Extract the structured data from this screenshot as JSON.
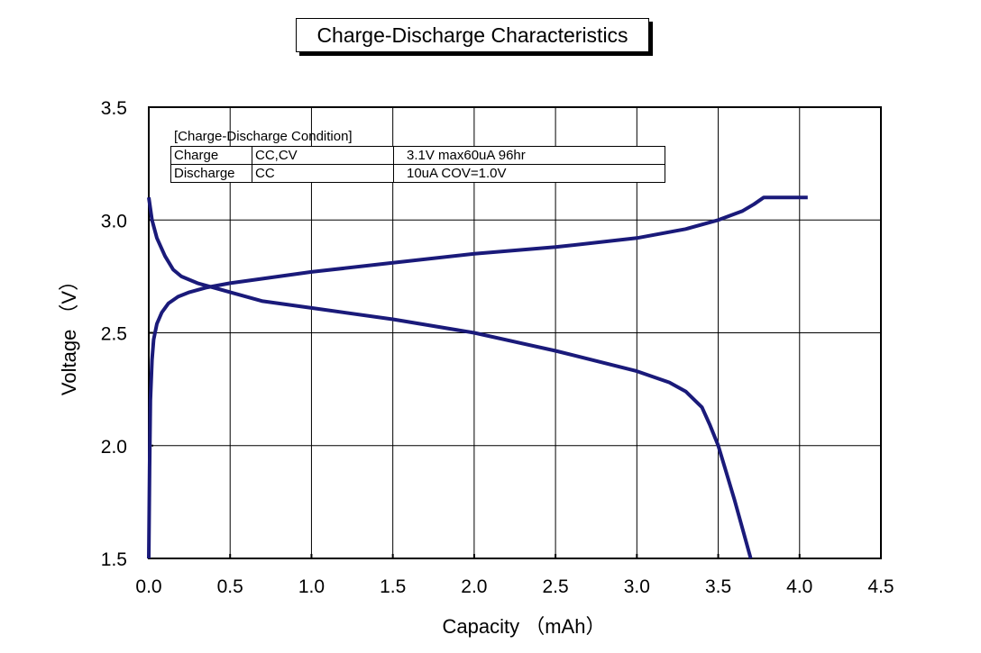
{
  "chart_data": {
    "type": "line",
    "title": "Charge-Discharge Characteristics",
    "xlabel": "Capacity （mAh）",
    "ylabel": "Voltage （V）",
    "xlim": [
      0.0,
      4.5
    ],
    "ylim": [
      1.5,
      3.5
    ],
    "xticks": [
      "0.0",
      "0.5",
      "1.0",
      "1.5",
      "2.0",
      "2.5",
      "3.0",
      "3.5",
      "4.0",
      "4.5"
    ],
    "yticks": [
      "1.5",
      "2.0",
      "2.5",
      "3.0",
      "3.5"
    ],
    "grid": true,
    "series": [
      {
        "color": "#1a1a7a",
        "x": [
          0.0,
          0.005,
          0.01,
          0.02,
          0.03,
          0.05,
          0.08,
          0.12,
          0.18,
          0.25,
          0.35,
          0.5,
          0.7,
          1.0,
          1.5,
          2.0,
          2.5,
          3.0,
          3.3,
          3.5,
          3.65,
          3.72,
          3.78,
          4.05
        ],
        "y": [
          1.5,
          1.9,
          2.2,
          2.38,
          2.47,
          2.54,
          2.59,
          2.63,
          2.66,
          2.68,
          2.7,
          2.72,
          2.74,
          2.77,
          2.81,
          2.85,
          2.88,
          2.92,
          2.96,
          3.0,
          3.04,
          3.07,
          3.1,
          3.1
        ]
      },
      {
        "color": "#1a1a7a",
        "x": [
          0.0,
          0.02,
          0.05,
          0.1,
          0.15,
          0.2,
          0.3,
          0.4,
          0.5,
          0.7,
          1.0,
          1.5,
          2.0,
          2.5,
          3.0,
          3.2,
          3.3,
          3.4,
          3.45,
          3.5,
          3.55,
          3.6,
          3.65,
          3.7
        ],
        "y": [
          3.1,
          3.0,
          2.92,
          2.84,
          2.78,
          2.75,
          2.72,
          2.7,
          2.68,
          2.64,
          2.61,
          2.56,
          2.5,
          2.42,
          2.33,
          2.28,
          2.24,
          2.17,
          2.09,
          2.0,
          1.88,
          1.76,
          1.63,
          1.5
        ]
      }
    ],
    "condition_table": {
      "caption": "[Charge-Discharge Condition]",
      "rows": [
        {
          "label": "Charge",
          "mode": "CC,CV",
          "detail": "3.1V  max60uA 96hr"
        },
        {
          "label": "Discharge",
          "mode": "CC",
          "detail": "10uA COV=1.0V"
        }
      ]
    }
  }
}
